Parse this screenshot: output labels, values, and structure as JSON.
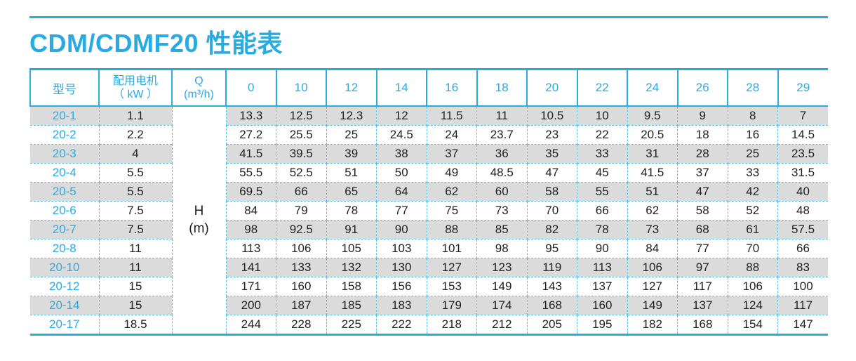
{
  "page": {
    "title": "CDM/CDMF20 性能表",
    "accent_color": "#29ABE2",
    "dash_border_color": "#56BFE6",
    "zebra_color": "#DBDBDB",
    "text_color": "#1F1F1F",
    "background_color": "#FFFFFF"
  },
  "table": {
    "header": {
      "model_label": "型号",
      "motor_label_line1": "配用电机",
      "motor_label_line2": "（ kW ）",
      "q_label_line1": "Q",
      "q_label_line2": "(m³/h)",
      "flow_columns": [
        "0",
        "10",
        "12",
        "14",
        "16",
        "18",
        "20",
        "22",
        "24",
        "26",
        "28",
        "29"
      ]
    },
    "head_unit_cell": {
      "line1": "H",
      "line2": "(m)"
    },
    "rows": [
      {
        "model": "20-1",
        "power": "1.1",
        "values": [
          "13.3",
          "12.5",
          "12.3",
          "12",
          "11.5",
          "11",
          "10.5",
          "10",
          "9.5",
          "9",
          "8",
          "7"
        ]
      },
      {
        "model": "20-2",
        "power": "2.2",
        "values": [
          "27.2",
          "25.5",
          "25",
          "24.5",
          "24",
          "23.7",
          "23",
          "22",
          "20.5",
          "18",
          "16",
          "14.5"
        ]
      },
      {
        "model": "20-3",
        "power": "4",
        "values": [
          "41.5",
          "39.5",
          "39",
          "38",
          "37",
          "36",
          "35",
          "33",
          "31",
          "28",
          "25",
          "23.5"
        ]
      },
      {
        "model": "20-4",
        "power": "5.5",
        "values": [
          "55.5",
          "52.5",
          "51",
          "50",
          "49",
          "48.5",
          "47",
          "45",
          "41.5",
          "37",
          "33",
          "31.5"
        ]
      },
      {
        "model": "20-5",
        "power": "5.5",
        "values": [
          "69.5",
          "66",
          "65",
          "64",
          "62",
          "60",
          "58",
          "55",
          "51",
          "47",
          "42",
          "40"
        ]
      },
      {
        "model": "20-6",
        "power": "7.5",
        "values": [
          "84",
          "79",
          "78",
          "77",
          "75",
          "73",
          "70",
          "66",
          "62",
          "58",
          "52",
          "48"
        ]
      },
      {
        "model": "20-7",
        "power": "7.5",
        "values": [
          "98",
          "92.5",
          "91",
          "90",
          "88",
          "85",
          "82",
          "78",
          "73",
          "68",
          "61",
          "57.5"
        ]
      },
      {
        "model": "20-8",
        "power": "11",
        "values": [
          "113",
          "106",
          "105",
          "103",
          "101",
          "98",
          "95",
          "90",
          "84",
          "77",
          "70",
          "66"
        ]
      },
      {
        "model": "20-10",
        "power": "11",
        "values": [
          "141",
          "133",
          "132",
          "130",
          "127",
          "123",
          "119",
          "113",
          "106",
          "97",
          "88",
          "83"
        ]
      },
      {
        "model": "20-12",
        "power": "15",
        "values": [
          "171",
          "160",
          "158",
          "156",
          "153",
          "149",
          "143",
          "137",
          "127",
          "117",
          "106",
          "100"
        ]
      },
      {
        "model": "20-14",
        "power": "15",
        "values": [
          "200",
          "187",
          "185",
          "183",
          "179",
          "174",
          "168",
          "160",
          "149",
          "137",
          "124",
          "117"
        ]
      },
      {
        "model": "20-17",
        "power": "18.5",
        "values": [
          "244",
          "228",
          "225",
          "222",
          "218",
          "212",
          "205",
          "195",
          "182",
          "168",
          "154",
          "147"
        ]
      }
    ]
  }
}
